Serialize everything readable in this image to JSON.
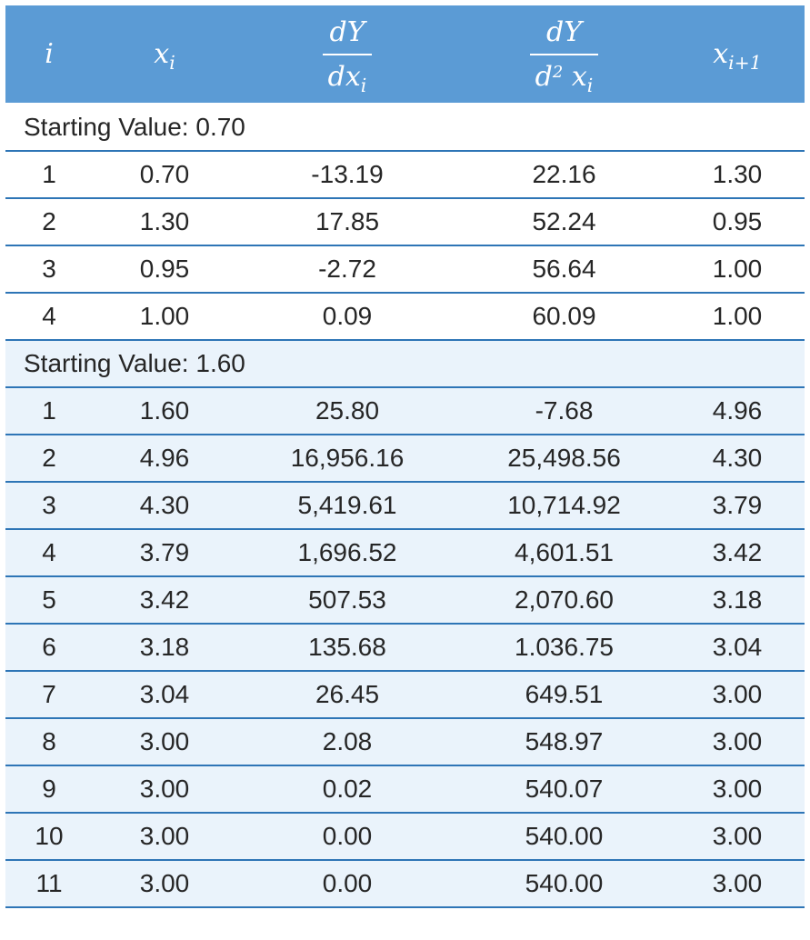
{
  "headers": {
    "i": "i",
    "x": "x",
    "x_sub": "i",
    "d1_num": "dY",
    "d1_den": "dx",
    "d1_den_sub": "i",
    "d2_num": "dY",
    "d2_den_d": "d",
    "d2_den_sup": "2",
    "d2_den_x": "x",
    "d2_den_sub": "i",
    "xn": "x",
    "xn_sub": "i+1"
  },
  "group1": {
    "label": "Starting Value: 0.70",
    "rows": [
      [
        "1",
        "0.70",
        "-13.19",
        "22.16",
        "1.30"
      ],
      [
        "2",
        "1.30",
        "17.85",
        "52.24",
        "0.95"
      ],
      [
        "3",
        "0.95",
        "-2.72",
        "56.64",
        "1.00"
      ],
      [
        "4",
        "1.00",
        "0.09",
        "60.09",
        "1.00"
      ]
    ]
  },
  "group2": {
    "label": "Starting Value: 1.60",
    "rows": [
      [
        "1",
        "1.60",
        "25.80",
        "-7.68",
        "4.96"
      ],
      [
        "2",
        "4.96",
        "16,956.16",
        "25,498.56",
        "4.30"
      ],
      [
        "3",
        "4.30",
        "5,419.61",
        "10,714.92",
        "3.79"
      ],
      [
        "4",
        "3.79",
        "1,696.52",
        "4,601.51",
        "3.42"
      ],
      [
        "5",
        "3.42",
        "507.53",
        "2,070.60",
        "3.18"
      ],
      [
        "6",
        "3.18",
        "135.68",
        "1.036.75",
        "3.04"
      ],
      [
        "7",
        "3.04",
        "26.45",
        "649.51",
        "3.00"
      ],
      [
        "8",
        "3.00",
        "2.08",
        "548.97",
        "3.00"
      ],
      [
        "9",
        "3.00",
        "0.02",
        "540.07",
        "3.00"
      ],
      [
        "10",
        "3.00",
        "0.00",
        "540.00",
        "3.00"
      ],
      [
        "11",
        "3.00",
        "0.00",
        "540.00",
        "3.00"
      ]
    ]
  },
  "colors": {
    "header_bg": "#5b9bd5",
    "rule": "#2e75b6",
    "group2_bg": "#eaf3fb"
  }
}
